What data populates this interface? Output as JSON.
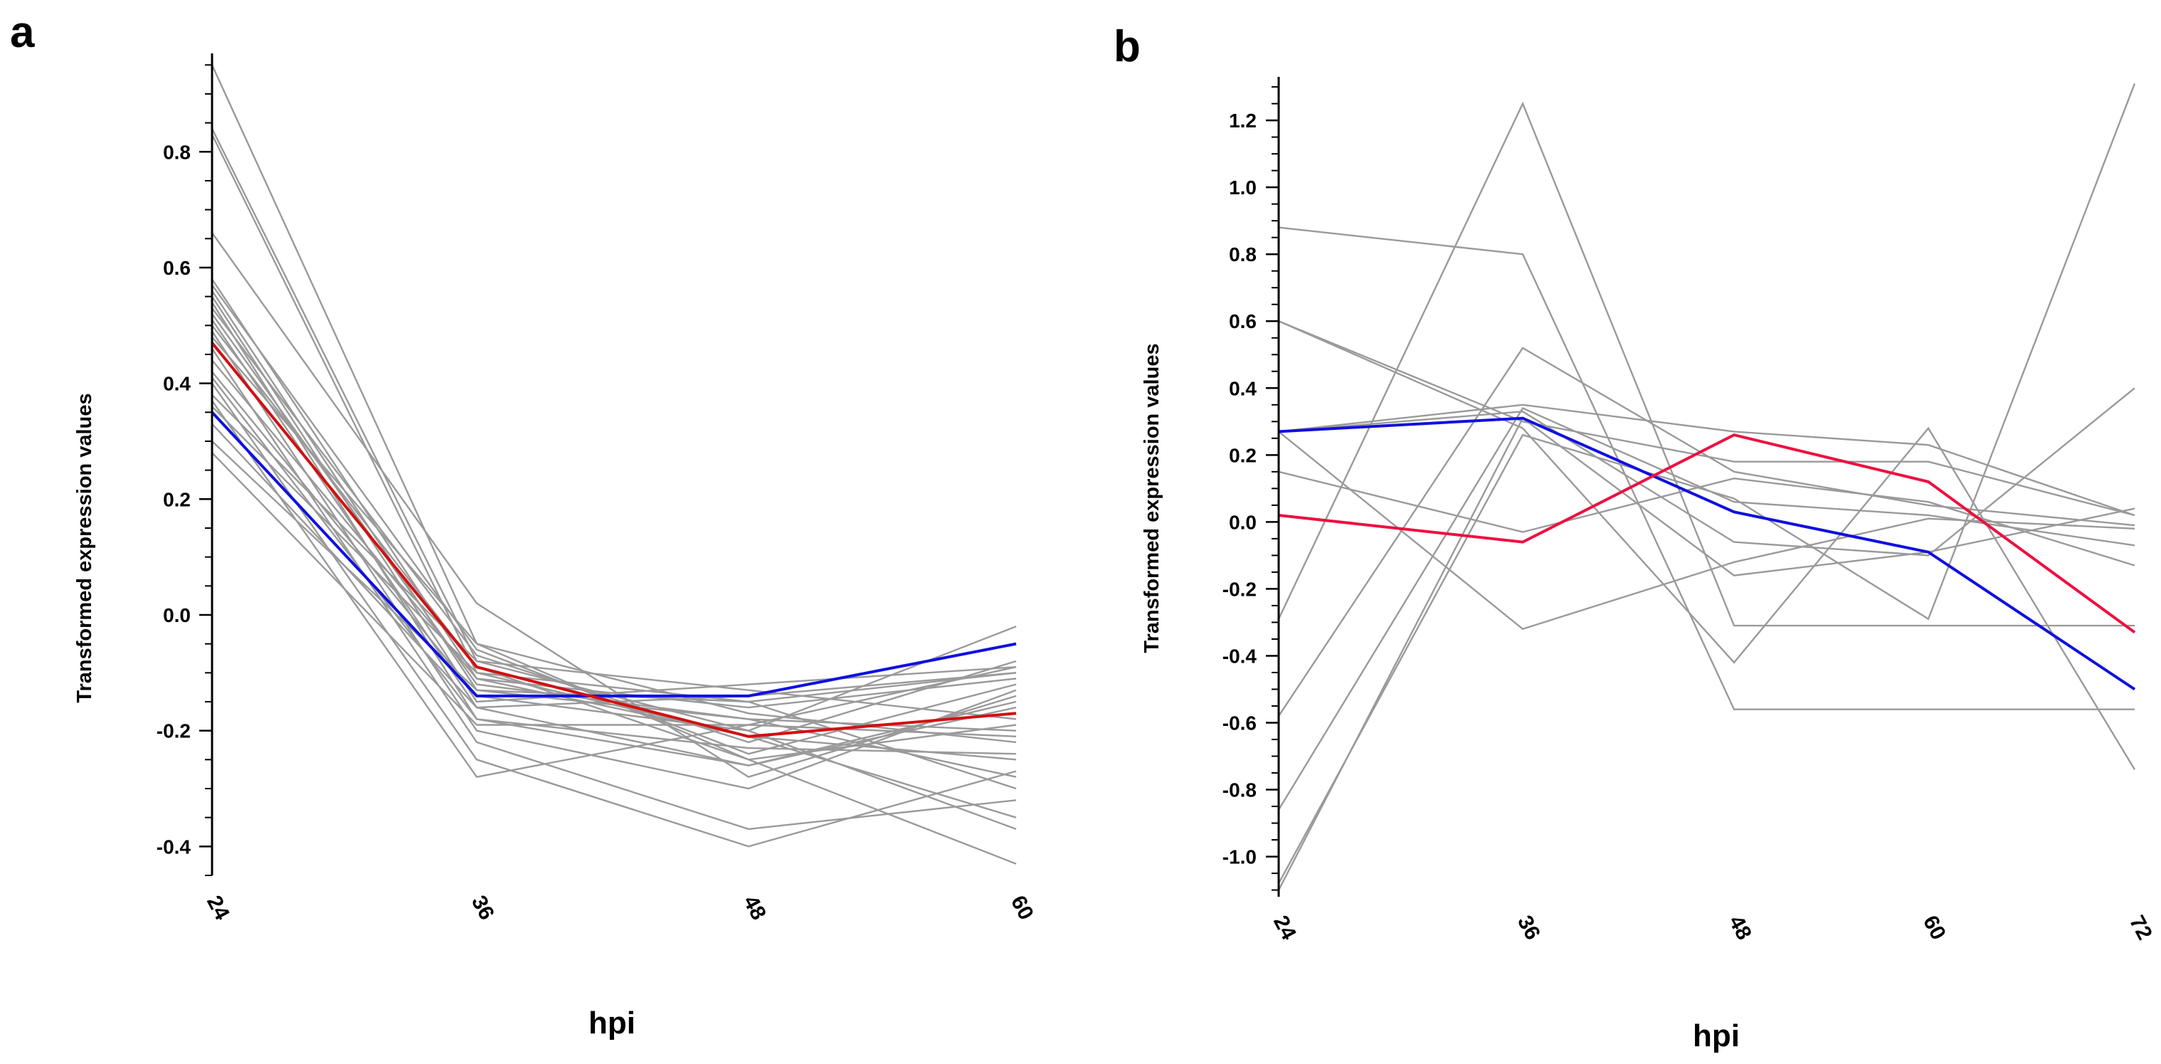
{
  "figure": {
    "panels": [
      "a",
      "b"
    ]
  },
  "colors": {
    "gray": "#9a9a9a",
    "blue": "#1010e0",
    "red_a": "#d21010",
    "red_b": "#ee1040",
    "axis": "#000000"
  },
  "chart_data": [
    {
      "panel": "a",
      "type": "line",
      "xlabel": "hpi",
      "ylabel": "Transformed expression values",
      "x": [
        "24",
        "36",
        "48",
        "60"
      ],
      "ylim": [
        -0.45,
        0.97
      ],
      "yticks": [
        "0.8",
        "0.6",
        "0.4",
        "0.2",
        "0.0",
        "-0.2",
        "-0.4"
      ],
      "highlight": [
        {
          "color": "blue",
          "values": [
            0.35,
            -0.14,
            -0.14,
            -0.05
          ]
        },
        {
          "color": "red",
          "values": [
            0.47,
            -0.09,
            -0.21,
            -0.17
          ]
        }
      ],
      "series": [
        {
          "values": [
            0.95,
            -0.05,
            -0.25,
            -0.43
          ]
        },
        {
          "values": [
            0.84,
            -0.08,
            -0.2,
            -0.37
          ]
        },
        {
          "values": [
            0.83,
            -0.1,
            -0.15,
            -0.3
          ]
        },
        {
          "values": [
            0.66,
            0.02,
            -0.28,
            -0.14
          ]
        },
        {
          "values": [
            0.58,
            -0.11,
            -0.21,
            -0.25
          ]
        },
        {
          "values": [
            0.57,
            -0.06,
            -0.24,
            -0.12
          ]
        },
        {
          "values": [
            0.56,
            -0.13,
            -0.18,
            -0.2
          ]
        },
        {
          "values": [
            0.55,
            -0.15,
            -0.12,
            -0.09
          ]
        },
        {
          "values": [
            0.54,
            -0.18,
            -0.26,
            -0.15
          ]
        },
        {
          "values": [
            0.53,
            -0.07,
            -0.22,
            -0.08
          ]
        },
        {
          "values": [
            0.52,
            -0.12,
            -0.18,
            -0.28
          ]
        },
        {
          "values": [
            0.51,
            -0.16,
            -0.14,
            -0.1
          ]
        },
        {
          "values": [
            0.5,
            -0.09,
            -0.25,
            -0.19
          ]
        },
        {
          "values": [
            0.49,
            -0.2,
            -0.3,
            -0.13
          ]
        },
        {
          "values": [
            0.48,
            -0.05,
            -0.17,
            -0.22
          ]
        },
        {
          "values": [
            0.46,
            -0.22,
            -0.37,
            -0.32
          ]
        },
        {
          "values": [
            0.44,
            -0.11,
            -0.16,
            -0.11
          ]
        },
        {
          "values": [
            0.42,
            -0.14,
            -0.2,
            -0.02
          ]
        },
        {
          "values": [
            0.41,
            -0.18,
            -0.23,
            -0.24
          ]
        },
        {
          "values": [
            0.4,
            -0.25,
            -0.4,
            -0.27
          ]
        },
        {
          "values": [
            0.38,
            -0.08,
            -0.13,
            -0.18
          ]
        },
        {
          "values": [
            0.37,
            -0.28,
            -0.19,
            -0.09
          ]
        },
        {
          "values": [
            0.36,
            -0.1,
            -0.21,
            -0.35
          ]
        },
        {
          "values": [
            0.33,
            -0.16,
            -0.26,
            -0.16
          ]
        },
        {
          "values": [
            0.3,
            -0.13,
            -0.15,
            -0.1
          ]
        },
        {
          "values": [
            0.28,
            -0.19,
            -0.19,
            -0.21
          ]
        }
      ]
    },
    {
      "panel": "b",
      "type": "line",
      "xlabel": "hpi",
      "ylabel": "Transformed expression values",
      "x": [
        "24",
        "36",
        "48",
        "60",
        "72"
      ],
      "ylim": [
        -1.12,
        1.33
      ],
      "yticks": [
        "1.2",
        "1.0",
        "0.8",
        "0.6",
        "0.4",
        "0.2",
        "0.0",
        "-0.2",
        "-0.4",
        "-0.6",
        "-0.8",
        "-1.0"
      ],
      "highlight": [
        {
          "color": "blue",
          "values": [
            0.27,
            0.31,
            0.03,
            -0.09,
            -0.5
          ]
        },
        {
          "color": "red",
          "values": [
            0.02,
            -0.06,
            0.26,
            0.12,
            -0.33
          ]
        }
      ],
      "series": [
        {
          "values": [
            0.88,
            0.8,
            -0.56,
            -0.56,
            -0.56
          ]
        },
        {
          "values": [
            0.6,
            0.3,
            0.18,
            0.18,
            0.02
          ]
        },
        {
          "values": [
            0.6,
            0.28,
            -0.42,
            0.28,
            -0.74
          ]
        },
        {
          "values": [
            0.27,
            0.35,
            0.27,
            0.23,
            0.02
          ]
        },
        {
          "values": [
            0.15,
            -0.03,
            0.13,
            0.06,
            -0.13
          ]
        },
        {
          "values": [
            -0.29,
            1.25,
            -0.31,
            -0.31,
            -0.31
          ]
        },
        {
          "values": [
            -0.58,
            0.52,
            0.15,
            0.05,
            -0.01
          ]
        },
        {
          "values": [
            -0.86,
            0.34,
            0.06,
            0.02,
            -0.07
          ]
        },
        {
          "values": [
            -1.08,
            0.26,
            0.07,
            -0.29,
            1.31
          ]
        },
        {
          "values": [
            -1.1,
            0.31,
            -0.16,
            -0.09,
            0.04
          ]
        },
        {
          "values": [
            0.27,
            -0.32,
            -0.12,
            0.01,
            -0.02
          ]
        },
        {
          "values": [
            0.27,
            0.33,
            -0.06,
            -0.1,
            0.4
          ]
        }
      ]
    }
  ]
}
